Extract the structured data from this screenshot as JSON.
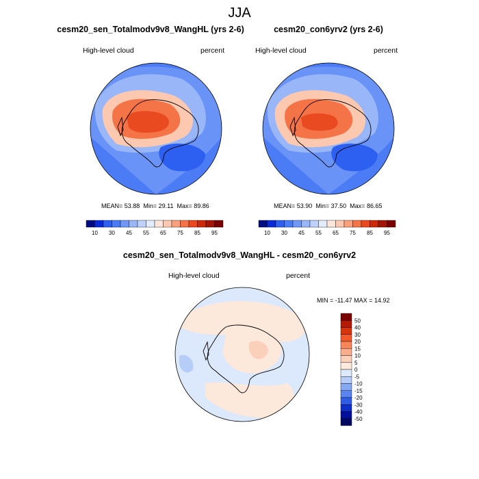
{
  "title": "JJA",
  "chart_data": [
    {
      "type": "polar-contour-map",
      "title": "cesm20_sen_Totalmodv9v8_WangHL (yrs 2-6)",
      "left_label": "High-level cloud",
      "right_label": "percent",
      "stats": {
        "mean_label": "MEAN=",
        "mean": "53.88",
        "min_label": "Min=",
        "min": "29.11",
        "max_label": "Max=",
        "max": "89.86"
      },
      "colorbar": {
        "levels": [
          10,
          30,
          45,
          55,
          65,
          75,
          85,
          95
        ],
        "colors": [
          "#000c80",
          "#0a2ad6",
          "#2d5ff0",
          "#4b7cf5",
          "#6f98f7",
          "#98b6f8",
          "#bfd2fb",
          "#e2ecfd",
          "#fde7dc",
          "#fcc9b0",
          "#f9a07d",
          "#f47448",
          "#ea4a1f",
          "#cc2a0a",
          "#a31505",
          "#7a0000"
        ]
      }
    },
    {
      "type": "polar-contour-map",
      "title": "cesm20_con6yrv2 (yrs 2-6)",
      "left_label": "High-level cloud",
      "right_label": "percent",
      "stats": {
        "mean_label": "MEAN=",
        "mean": "53.90",
        "min_label": "Min=",
        "min": "37.50",
        "max_label": "Max=",
        "max": "86.65"
      },
      "colorbar": {
        "levels": [
          10,
          30,
          45,
          55,
          65,
          75,
          85,
          95
        ],
        "colors": [
          "#000c80",
          "#0a2ad6",
          "#2d5ff0",
          "#4b7cf5",
          "#6f98f7",
          "#98b6f8",
          "#bfd2fb",
          "#e2ecfd",
          "#fde7dc",
          "#fcc9b0",
          "#f9a07d",
          "#f47448",
          "#ea4a1f",
          "#cc2a0a",
          "#a31505",
          "#7a0000"
        ]
      }
    },
    {
      "type": "polar-contour-map",
      "title": "cesm20_sen_Totalmodv9v8_WangHL - cesm20_con6yrv2",
      "left_label": "High-level cloud",
      "right_label": "percent",
      "stats": {
        "min_label": "MIN =",
        "min": "-11.47",
        "max_label": "MAX =",
        "max": "14.92"
      },
      "colorbar": {
        "levels": [
          50,
          40,
          30,
          20,
          15,
          10,
          5,
          0,
          -5,
          -10,
          -15,
          -20,
          -30,
          -40,
          -50
        ],
        "colors": [
          "#7a0000",
          "#b51a04",
          "#d9330c",
          "#f05a2a",
          "#f7855a",
          "#f9ad8d",
          "#fbd0bb",
          "#fde8dc",
          "#dce8fb",
          "#b6cdf8",
          "#86a9f4",
          "#5a85ef",
          "#2f5de5",
          "#0f30c8",
          "#020f9a",
          "#000860"
        ]
      }
    }
  ]
}
